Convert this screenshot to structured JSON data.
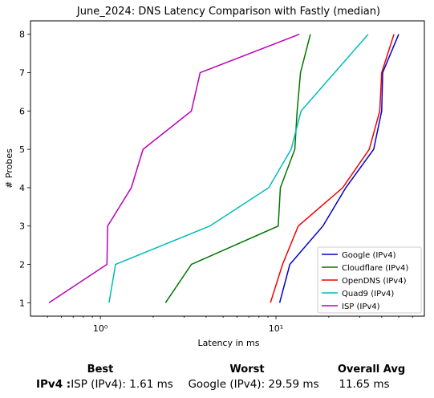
{
  "chart_data": {
    "type": "line",
    "title": "June_2024: DNS Latency Comparison with Fastly (median)",
    "xlabel": "Latency in ms",
    "ylabel": "# Probes",
    "xscale": "log",
    "xlim": [
      0.4,
      70
    ],
    "ylim": [
      0.65,
      8.35
    ],
    "xticks": [
      {
        "value": 1,
        "label": "10⁰"
      },
      {
        "value": 10,
        "label": "10¹"
      }
    ],
    "yticks": [
      1,
      2,
      3,
      4,
      5,
      6,
      7,
      8
    ],
    "legend": "bottom-right",
    "grid": false,
    "series": [
      {
        "name": "Google (IPv4)",
        "color": "#0000cc",
        "points": [
          [
            10.5,
            1
          ],
          [
            12,
            2
          ],
          [
            18.5,
            3
          ],
          [
            25,
            4
          ],
          [
            36,
            5
          ],
          [
            40,
            6
          ],
          [
            40.5,
            7
          ],
          [
            50,
            8
          ]
        ]
      },
      {
        "name": "Cloudflare (IPv4)",
        "color": "#007700",
        "points": [
          [
            2.35,
            1
          ],
          [
            3.3,
            2
          ],
          [
            10.3,
            3
          ],
          [
            10.6,
            4
          ],
          [
            12.8,
            5
          ],
          [
            13.2,
            6
          ],
          [
            13.8,
            7
          ],
          [
            15.7,
            8
          ]
        ]
      },
      {
        "name": "OpenDNS (IPv4)",
        "color": "#ee0000",
        "points": [
          [
            9.3,
            1
          ],
          [
            10.9,
            2
          ],
          [
            13.4,
            3
          ],
          [
            24,
            4
          ],
          [
            34,
            5
          ],
          [
            39,
            6
          ],
          [
            40,
            7
          ],
          [
            47,
            8
          ]
        ]
      },
      {
        "name": "Quad9 (IPv4)",
        "color": "#00bbbb",
        "points": [
          [
            1.12,
            1
          ],
          [
            1.22,
            2
          ],
          [
            4.2,
            3
          ],
          [
            9.1,
            4
          ],
          [
            12.2,
            5
          ],
          [
            13.9,
            6
          ],
          [
            33.5,
            8
          ]
        ]
      },
      {
        "name": "ISP (IPv4)",
        "color": "#bb00bb",
        "points": [
          [
            0.51,
            1
          ],
          [
            1.09,
            2
          ],
          [
            1.1,
            3
          ],
          [
            1.5,
            4
          ],
          [
            1.75,
            5
          ],
          [
            3.3,
            6
          ],
          [
            3.7,
            7
          ],
          [
            13.6,
            8
          ]
        ]
      }
    ]
  },
  "summary": {
    "headers": {
      "best": "Best",
      "worst": "Worst",
      "avg": "Overall Avg"
    },
    "row_label": "IPv4 :",
    "best": "ISP (IPv4): 1.61 ms",
    "worst": "Google (IPv4): 29.59 ms",
    "avg": "11.65 ms"
  }
}
